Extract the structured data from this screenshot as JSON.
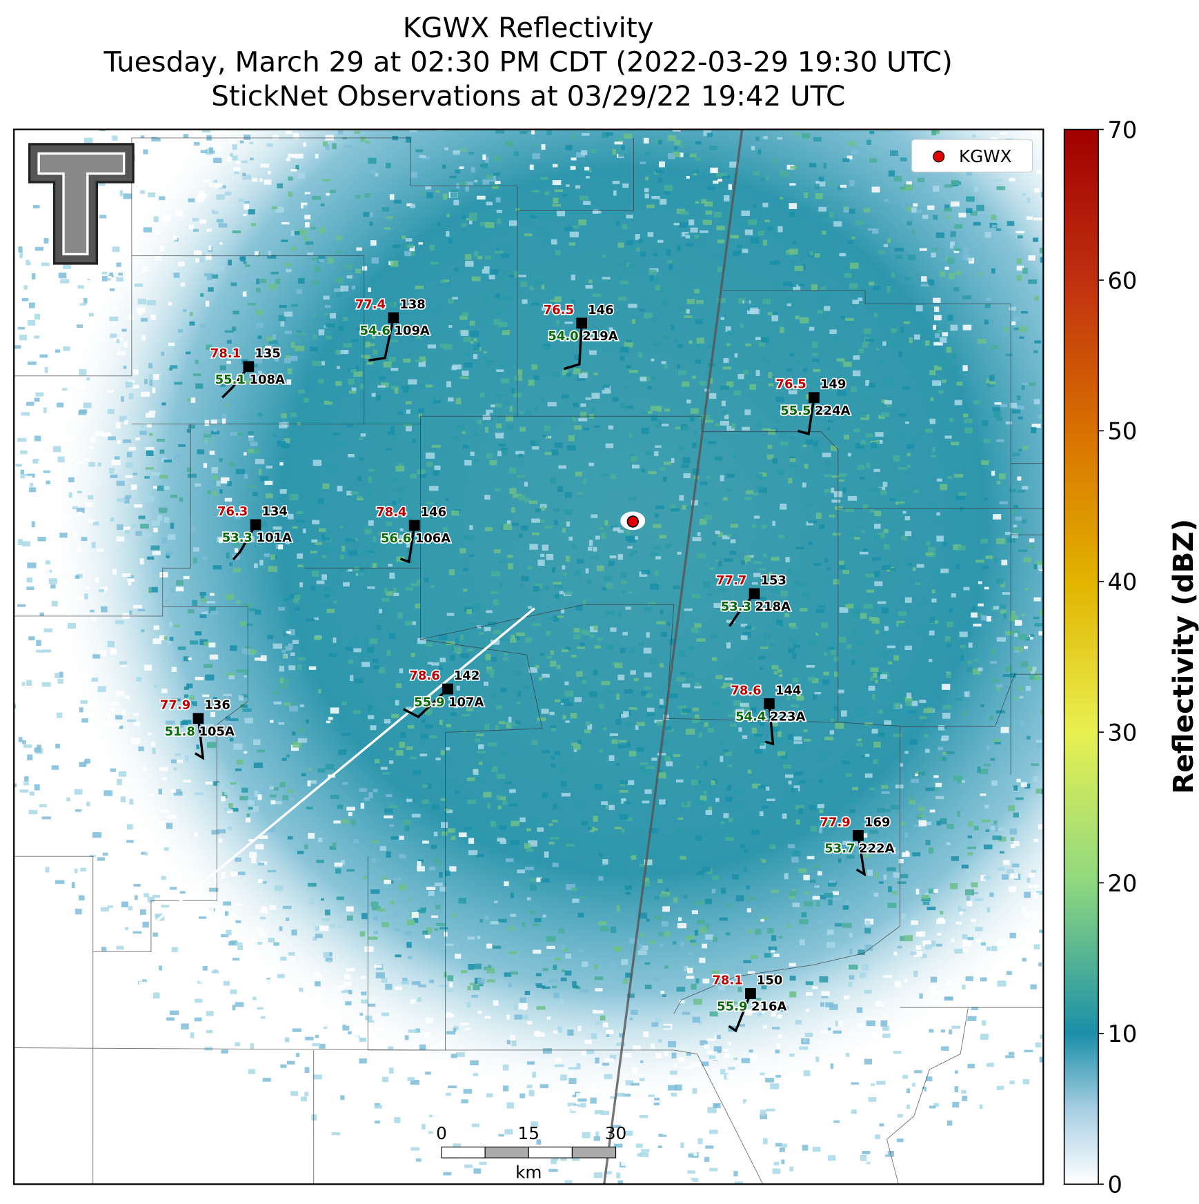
{
  "header": {
    "title_lines": [
      "KGWX Reflectivity",
      "Tuesday, March 29 at 02:30 PM CDT (2022-03-29 19:30 UTC)",
      "StickNet Observations at 03/29/22 19:42 UTC"
    ]
  },
  "legend": {
    "label": "KGWX",
    "color": "#e00000"
  },
  "colorbar": {
    "label": "Reflectivity (dBZ)",
    "lim": [
      0,
      70
    ],
    "ticks": [
      0,
      10,
      20,
      30,
      40,
      50,
      60,
      70
    ]
  },
  "scale_bar": {
    "ticks": [
      0,
      15,
      30
    ],
    "unit": "km"
  },
  "stations": [
    {
      "id": "109A",
      "temp": "77.4",
      "dewpoint": "54.6",
      "value": "138"
    },
    {
      "id": "219A",
      "temp": "76.5",
      "dewpoint": "54.0",
      "value": "146"
    },
    {
      "id": "108A",
      "temp": "78.1",
      "dewpoint": "55.1",
      "value": "135"
    },
    {
      "id": "224A",
      "temp": "76.5",
      "dewpoint": "55.5",
      "value": "149"
    },
    {
      "id": "101A",
      "temp": "76.3",
      "dewpoint": "53.3",
      "value": "134"
    },
    {
      "id": "106A",
      "temp": "78.4",
      "dewpoint": "56.6",
      "value": "146"
    },
    {
      "id": "218A",
      "temp": "77.7",
      "dewpoint": "53.3",
      "value": "153"
    },
    {
      "id": "107A",
      "temp": "78.6",
      "dewpoint": "55.9",
      "value": "142"
    },
    {
      "id": "105A",
      "temp": "77.9",
      "dewpoint": "51.8",
      "value": "136"
    },
    {
      "id": "223A",
      "temp": "78.6",
      "dewpoint": "54.4",
      "value": "144"
    },
    {
      "id": "222A",
      "temp": "77.9",
      "dewpoint": "53.7",
      "value": "169"
    },
    {
      "id": "216A",
      "temp": "78.1",
      "dewpoint": "55.9",
      "value": "150"
    }
  ]
}
